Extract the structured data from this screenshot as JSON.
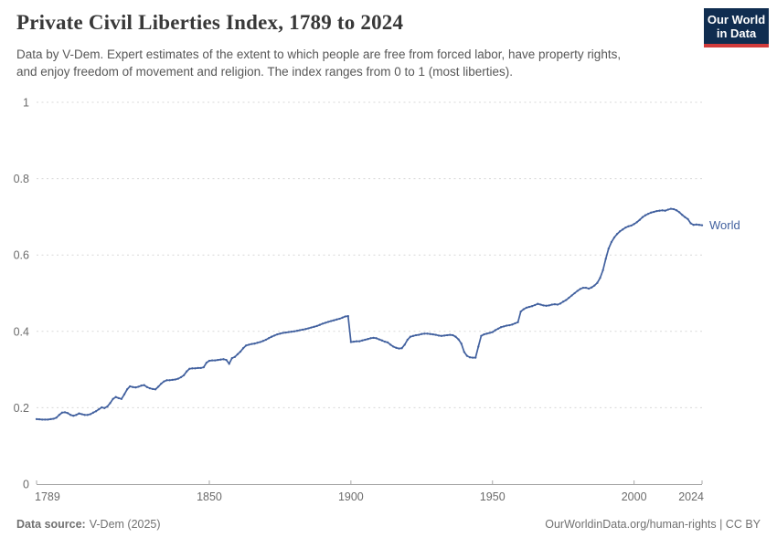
{
  "header": {
    "title": "Private Civil Liberties Index, 1789 to 2024",
    "subtitle_lines": [
      "Data by V-Dem. Expert estimates of the extent to which people are free from forced labor, have property rights,",
      "and enjoy freedom of movement and religion. The index ranges from 0 to 1 (most liberties)."
    ]
  },
  "logo": {
    "line1": "Our World",
    "line2": "in Data",
    "bg_color": "#102d50",
    "stripe_color": "#d13b3b"
  },
  "colors": {
    "line": "#42619f",
    "grid": "#d8d8d8",
    "axis": "#a8a8a8",
    "tick_label": "#6b6b6b",
    "title": "#383838",
    "subtitle": "#575757",
    "footer": "#717171"
  },
  "footer": {
    "source_label": "Data source:",
    "source_value": "V-Dem (2025)",
    "url": "OurWorldinData.org/human-rights",
    "divider": " | ",
    "license": "CC BY"
  },
  "chart_data": {
    "type": "line",
    "title": "Private Civil Liberties Index, 1789 to 2024",
    "xlabel": "",
    "ylabel": "",
    "xlim": [
      1789,
      2024
    ],
    "ylim": [
      0,
      1
    ],
    "grid": "horizontal-dashed",
    "legend_position": "end-of-line",
    "x_ticks": [
      1789,
      1850,
      1900,
      1950,
      2000,
      2024
    ],
    "x_tick_labels": [
      "1789",
      "1850",
      "1900",
      "1950",
      "2000",
      "2024"
    ],
    "y_ticks": [
      0,
      0.2,
      0.4,
      0.6,
      0.8,
      1
    ],
    "y_tick_labels": [
      "0",
      "0.2",
      "0.4",
      "0.6",
      "0.8",
      "1"
    ],
    "series": [
      {
        "name": "World",
        "color": "#42619f",
        "points": [
          [
            1789,
            0.17
          ],
          [
            1791,
            0.169
          ],
          [
            1793,
            0.169
          ],
          [
            1795,
            0.171
          ],
          [
            1796,
            0.174
          ],
          [
            1797,
            0.181
          ],
          [
            1798,
            0.187
          ],
          [
            1799,
            0.188
          ],
          [
            1800,
            0.186
          ],
          [
            1801,
            0.181
          ],
          [
            1802,
            0.179
          ],
          [
            1803,
            0.181
          ],
          [
            1804,
            0.185
          ],
          [
            1805,
            0.183
          ],
          [
            1806,
            0.181
          ],
          [
            1807,
            0.181
          ],
          [
            1808,
            0.183
          ],
          [
            1809,
            0.187
          ],
          [
            1810,
            0.191
          ],
          [
            1811,
            0.196
          ],
          [
            1812,
            0.201
          ],
          [
            1813,
            0.199
          ],
          [
            1814,
            0.203
          ],
          [
            1815,
            0.212
          ],
          [
            1816,
            0.223
          ],
          [
            1817,
            0.228
          ],
          [
            1818,
            0.225
          ],
          [
            1819,
            0.223
          ],
          [
            1820,
            0.235
          ],
          [
            1821,
            0.248
          ],
          [
            1822,
            0.256
          ],
          [
            1823,
            0.254
          ],
          [
            1824,
            0.253
          ],
          [
            1825,
            0.255
          ],
          [
            1826,
            0.258
          ],
          [
            1827,
            0.259
          ],
          [
            1828,
            0.254
          ],
          [
            1829,
            0.251
          ],
          [
            1830,
            0.249
          ],
          [
            1831,
            0.248
          ],
          [
            1832,
            0.255
          ],
          [
            1833,
            0.263
          ],
          [
            1834,
            0.269
          ],
          [
            1835,
            0.272
          ],
          [
            1836,
            0.272
          ],
          [
            1837,
            0.273
          ],
          [
            1838,
            0.274
          ],
          [
            1839,
            0.276
          ],
          [
            1840,
            0.28
          ],
          [
            1841,
            0.285
          ],
          [
            1842,
            0.295
          ],
          [
            1843,
            0.302
          ],
          [
            1844,
            0.303
          ],
          [
            1845,
            0.303
          ],
          [
            1846,
            0.304
          ],
          [
            1847,
            0.304
          ],
          [
            1848,
            0.306
          ],
          [
            1849,
            0.318
          ],
          [
            1850,
            0.323
          ],
          [
            1851,
            0.324
          ],
          [
            1852,
            0.324
          ],
          [
            1853,
            0.325
          ],
          [
            1854,
            0.326
          ],
          [
            1855,
            0.327
          ],
          [
            1856,
            0.325
          ],
          [
            1857,
            0.315
          ],
          [
            1858,
            0.33
          ],
          [
            1859,
            0.333
          ],
          [
            1860,
            0.34
          ],
          [
            1861,
            0.347
          ],
          [
            1862,
            0.356
          ],
          [
            1863,
            0.363
          ],
          [
            1864,
            0.365
          ],
          [
            1865,
            0.367
          ],
          [
            1866,
            0.368
          ],
          [
            1867,
            0.37
          ],
          [
            1868,
            0.372
          ],
          [
            1869,
            0.375
          ],
          [
            1870,
            0.378
          ],
          [
            1871,
            0.382
          ],
          [
            1872,
            0.386
          ],
          [
            1873,
            0.389
          ],
          [
            1874,
            0.392
          ],
          [
            1875,
            0.394
          ],
          [
            1876,
            0.396
          ],
          [
            1877,
            0.397
          ],
          [
            1878,
            0.398
          ],
          [
            1880,
            0.4
          ],
          [
            1882,
            0.403
          ],
          [
            1884,
            0.406
          ],
          [
            1886,
            0.41
          ],
          [
            1888,
            0.414
          ],
          [
            1890,
            0.42
          ],
          [
            1892,
            0.425
          ],
          [
            1894,
            0.429
          ],
          [
            1896,
            0.433
          ],
          [
            1897,
            0.436
          ],
          [
            1898,
            0.439
          ],
          [
            1899,
            0.44
          ],
          [
            1900,
            0.372
          ],
          [
            1901,
            0.373
          ],
          [
            1902,
            0.374
          ],
          [
            1903,
            0.374
          ],
          [
            1904,
            0.376
          ],
          [
            1905,
            0.378
          ],
          [
            1906,
            0.38
          ],
          [
            1907,
            0.382
          ],
          [
            1908,
            0.383
          ],
          [
            1909,
            0.382
          ],
          [
            1910,
            0.379
          ],
          [
            1911,
            0.376
          ],
          [
            1912,
            0.373
          ],
          [
            1913,
            0.371
          ],
          [
            1914,
            0.365
          ],
          [
            1915,
            0.36
          ],
          [
            1916,
            0.357
          ],
          [
            1917,
            0.355
          ],
          [
            1918,
            0.356
          ],
          [
            1919,
            0.365
          ],
          [
            1920,
            0.378
          ],
          [
            1921,
            0.386
          ],
          [
            1922,
            0.388
          ],
          [
            1923,
            0.39
          ],
          [
            1924,
            0.391
          ],
          [
            1925,
            0.393
          ],
          [
            1926,
            0.394
          ],
          [
            1927,
            0.394
          ],
          [
            1928,
            0.393
          ],
          [
            1929,
            0.392
          ],
          [
            1930,
            0.391
          ],
          [
            1931,
            0.389
          ],
          [
            1932,
            0.388
          ],
          [
            1933,
            0.389
          ],
          [
            1934,
            0.39
          ],
          [
            1935,
            0.391
          ],
          [
            1936,
            0.39
          ],
          [
            1937,
            0.386
          ],
          [
            1938,
            0.379
          ],
          [
            1939,
            0.368
          ],
          [
            1940,
            0.346
          ],
          [
            1941,
            0.336
          ],
          [
            1942,
            0.332
          ],
          [
            1943,
            0.331
          ],
          [
            1944,
            0.331
          ],
          [
            1945,
            0.36
          ],
          [
            1946,
            0.388
          ],
          [
            1947,
            0.392
          ],
          [
            1948,
            0.394
          ],
          [
            1949,
            0.396
          ],
          [
            1950,
            0.398
          ],
          [
            1951,
            0.403
          ],
          [
            1952,
            0.407
          ],
          [
            1953,
            0.411
          ],
          [
            1954,
            0.413
          ],
          [
            1955,
            0.415
          ],
          [
            1956,
            0.416
          ],
          [
            1957,
            0.418
          ],
          [
            1958,
            0.421
          ],
          [
            1959,
            0.424
          ],
          [
            1960,
            0.452
          ],
          [
            1961,
            0.458
          ],
          [
            1962,
            0.462
          ],
          [
            1963,
            0.464
          ],
          [
            1964,
            0.466
          ],
          [
            1965,
            0.469
          ],
          [
            1966,
            0.472
          ],
          [
            1967,
            0.47
          ],
          [
            1968,
            0.468
          ],
          [
            1969,
            0.467
          ],
          [
            1970,
            0.468
          ],
          [
            1971,
            0.47
          ],
          [
            1972,
            0.471
          ],
          [
            1973,
            0.47
          ],
          [
            1974,
            0.473
          ],
          [
            1975,
            0.478
          ],
          [
            1976,
            0.482
          ],
          [
            1977,
            0.488
          ],
          [
            1978,
            0.494
          ],
          [
            1979,
            0.5
          ],
          [
            1980,
            0.506
          ],
          [
            1981,
            0.511
          ],
          [
            1982,
            0.514
          ],
          [
            1983,
            0.514
          ],
          [
            1984,
            0.512
          ],
          [
            1985,
            0.515
          ],
          [
            1986,
            0.52
          ],
          [
            1987,
            0.527
          ],
          [
            1988,
            0.54
          ],
          [
            1989,
            0.56
          ],
          [
            1990,
            0.59
          ],
          [
            1991,
            0.617
          ],
          [
            1992,
            0.634
          ],
          [
            1993,
            0.646
          ],
          [
            1994,
            0.655
          ],
          [
            1995,
            0.662
          ],
          [
            1996,
            0.667
          ],
          [
            1997,
            0.672
          ],
          [
            1998,
            0.675
          ],
          [
            1999,
            0.677
          ],
          [
            2000,
            0.681
          ],
          [
            2001,
            0.686
          ],
          [
            2002,
            0.692
          ],
          [
            2003,
            0.699
          ],
          [
            2004,
            0.704
          ],
          [
            2005,
            0.708
          ],
          [
            2006,
            0.711
          ],
          [
            2007,
            0.713
          ],
          [
            2008,
            0.715
          ],
          [
            2009,
            0.716
          ],
          [
            2010,
            0.717
          ],
          [
            2011,
            0.716
          ],
          [
            2012,
            0.719
          ],
          [
            2013,
            0.721
          ],
          [
            2014,
            0.72
          ],
          [
            2015,
            0.717
          ],
          [
            2016,
            0.712
          ],
          [
            2017,
            0.705
          ],
          [
            2018,
            0.699
          ],
          [
            2019,
            0.694
          ],
          [
            2020,
            0.683
          ],
          [
            2021,
            0.679
          ],
          [
            2022,
            0.68
          ],
          [
            2023,
            0.679
          ],
          [
            2024,
            0.678
          ]
        ]
      }
    ]
  }
}
